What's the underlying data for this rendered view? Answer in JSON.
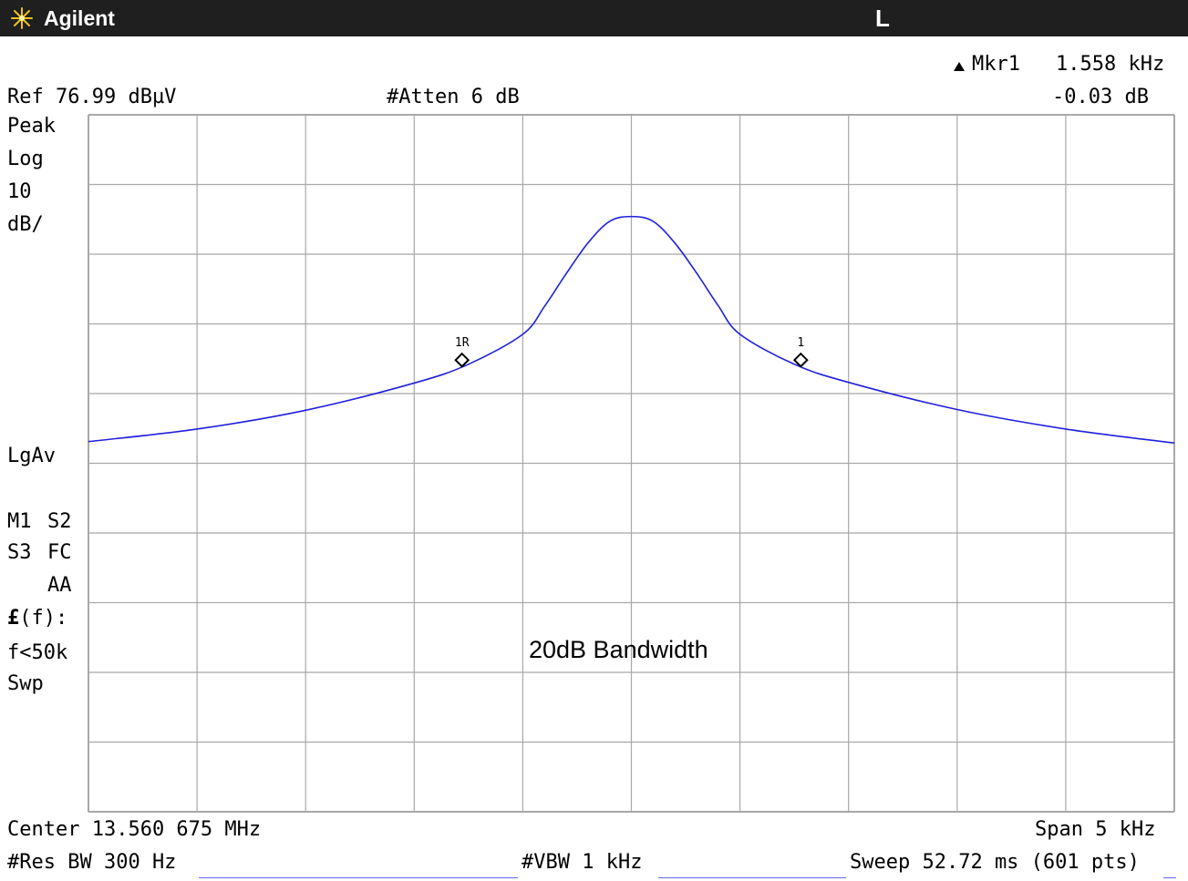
{
  "header": {
    "brand": "Agilent",
    "mode": "L"
  },
  "marker": {
    "label": "Mkr1",
    "frequency": "1.558 kHz",
    "amplitude": "-0.03 dB",
    "delta_icon": "delta-triangle-icon"
  },
  "ref_level": "Ref 76.99 dBµV",
  "attenuation": "#Atten 6 dB",
  "side_labels": {
    "detector": "Peak",
    "scale": "Log",
    "per_div_value": "10",
    "per_div_unit": "dB/",
    "average": "LgAv",
    "row_m1": "M1",
    "row_s2": "S2",
    "row_s3": "S3",
    "row_fc": "FC",
    "row_aa": "AA",
    "func_prefix": "£",
    "func_suffix": "(f):",
    "filter": "f<50k",
    "sweep": "Swp"
  },
  "footer": {
    "center": "Center 13.560 675 MHz",
    "span": "Span 5 kHz",
    "res_bw": "#Res BW 300 Hz",
    "vbw": "#VBW 1 kHz",
    "sweep": "Sweep 52.72 ms (601 pts)"
  },
  "annotation": "20dB  Bandwidth",
  "colors": {
    "trace": "#2020dd",
    "grid": "#a8a8a8",
    "titlebar": "#1f1f1f"
  },
  "chart_data": {
    "type": "line",
    "xlabel": "Center 13.560 675 MHz",
    "x_unit": "kHz offset from center",
    "xlim": [
      -2.5,
      2.5
    ],
    "ylim": [
      -23.01,
      76.99
    ],
    "y_unit": "dBµV",
    "grid": true,
    "divisions": {
      "x": 10,
      "y": 10
    },
    "series": [
      {
        "x": [
          -2.5,
          -2.0,
          -1.5,
          -1.0,
          -0.75,
          -0.5,
          -0.4,
          -0.3,
          -0.2,
          -0.1,
          0.0,
          0.1,
          0.2,
          0.3,
          0.4,
          0.5,
          0.75,
          1.0,
          1.5,
          2.0,
          2.5
        ],
        "values": [
          30.1,
          31.9,
          34.6,
          38.5,
          41.2,
          45.5,
          49.5,
          54.2,
          58.6,
          61.7,
          62.4,
          61.7,
          58.6,
          54.3,
          49.6,
          45.5,
          41.2,
          38.6,
          34.7,
          31.9,
          29.9
        ]
      }
    ],
    "markers": [
      {
        "label": "1R",
        "x": -0.78,
        "y": 41.8
      },
      {
        "label": "1",
        "x": 0.78,
        "y": 41.8
      }
    ],
    "annotations": [
      "20dB  Bandwidth"
    ]
  }
}
